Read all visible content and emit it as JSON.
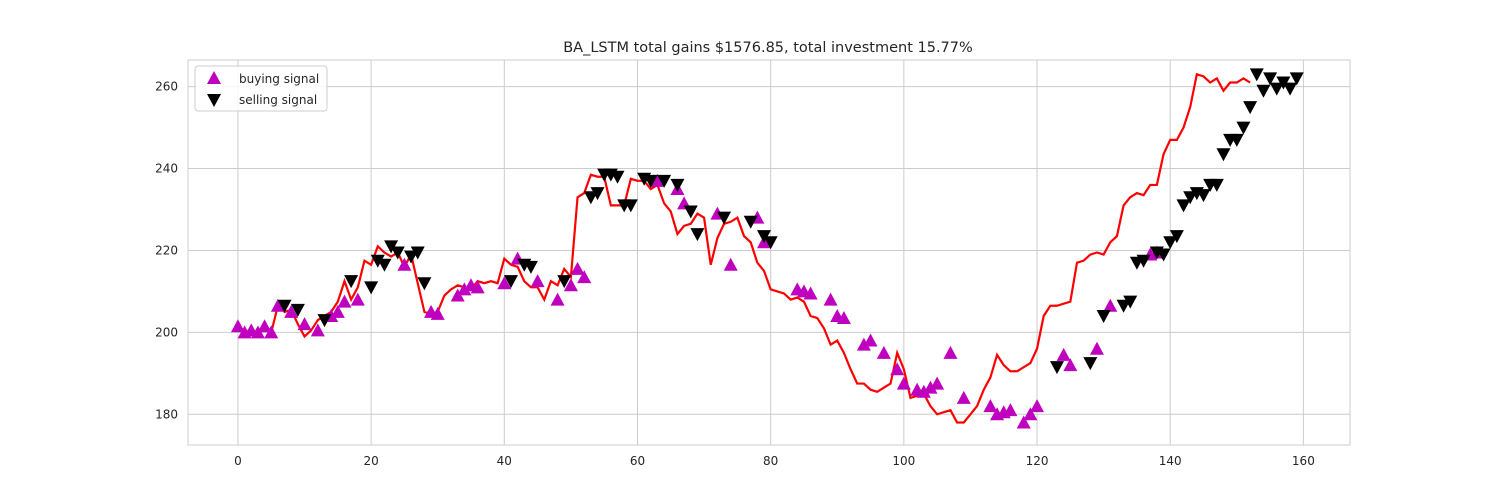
{
  "chart_data": {
    "type": "line",
    "title": "BA_LSTM total gains $1576.85, total investment 15.77%",
    "xlabel": "",
    "ylabel": "",
    "xlim": [
      -7.5,
      167
    ],
    "ylim": [
      172.5,
      266.5
    ],
    "xticks": [
      0,
      20,
      40,
      60,
      80,
      100,
      120,
      140,
      160
    ],
    "yticks": [
      180,
      200,
      220,
      240,
      260
    ],
    "grid": true,
    "legend_position": "top-left",
    "colors": {
      "line": "#ff0000",
      "buy": "#bf00bf",
      "sell": "#000000",
      "grid": "#cccccc",
      "frame": "#cccccc"
    },
    "series": [
      {
        "type": "line",
        "values": [
          201.5,
          200,
          200.5,
          200,
          201.5,
          200,
          206.5,
          205,
          205.5,
          202,
          199,
          200.5,
          203,
          204,
          205,
          207.5,
          212.5,
          208,
          211,
          217.5,
          216.5,
          221,
          219.5,
          218.5,
          219.5,
          216,
          219,
          212,
          205,
          204.5,
          205,
          209,
          210.5,
          211.5,
          211,
          210.5,
          212.5,
          212,
          212.5,
          212,
          218,
          216.5,
          216,
          212.5,
          211,
          211,
          208,
          212.5,
          211.5,
          215.5,
          213.5,
          233,
          234,
          238.5,
          238,
          238,
          231,
          231,
          231,
          237.5,
          237,
          237,
          235,
          236,
          231.5,
          229.5,
          224,
          226,
          226.5,
          229,
          228,
          216.5,
          223,
          226.5,
          227,
          228,
          223.5,
          222,
          217,
          215,
          210.5,
          210,
          209.5,
          208,
          208.5,
          207.5,
          204,
          203.5,
          201,
          197,
          198,
          195,
          191,
          187.5,
          187.5,
          186,
          185.5,
          186.5,
          187.5,
          195,
          191,
          184,
          184.5,
          185,
          182,
          180,
          180.5,
          181,
          178,
          178,
          180,
          182,
          186,
          189,
          194.5,
          192,
          190.5,
          190.5,
          191.5,
          192.5,
          196,
          204,
          206.5,
          206.5,
          207,
          207.5,
          217,
          217.5,
          219,
          219.5,
          219,
          222,
          223.5,
          231,
          233,
          234,
          233.5,
          236,
          236,
          243.5,
          247,
          247,
          250,
          255,
          263,
          262.5,
          261,
          262,
          259,
          261,
          261,
          262,
          261
        ]
      }
    ],
    "buy_signals": {
      "label": "buying signal",
      "x": [
        0,
        1,
        2,
        3,
        4,
        5,
        6,
        8,
        10,
        12,
        14,
        15,
        16,
        18,
        25,
        29,
        30,
        33,
        34,
        35,
        36,
        40,
        42,
        45,
        48,
        50,
        51,
        52,
        63,
        66,
        67,
        72,
        74,
        78,
        79,
        84,
        85,
        86,
        89,
        90,
        91,
        94,
        95,
        97,
        99,
        100,
        102,
        103,
        104,
        105,
        107,
        109,
        113,
        114,
        115,
        116,
        118,
        119,
        120,
        124,
        125,
        129,
        131,
        137,
        138
      ],
      "y": [
        201.5,
        200,
        200.5,
        200,
        201.5,
        200,
        206.5,
        205,
        202,
        200.5,
        204,
        205,
        207.5,
        208,
        216.5,
        205,
        204.5,
        209,
        210.5,
        211.5,
        211,
        212,
        218,
        212.5,
        208,
        211.5,
        215.5,
        213.5,
        237,
        235,
        231.5,
        229,
        216.5,
        228,
        222,
        210.5,
        210,
        209.5,
        208,
        204,
        203.5,
        197,
        198,
        195,
        191,
        187.5,
        186,
        185.5,
        186.5,
        187.5,
        195,
        184,
        182,
        180,
        180.5,
        181,
        178,
        180,
        182,
        194.5,
        192,
        196,
        206.5,
        219,
        219.5
      ]
    },
    "sell_signals": {
      "label": "selling signal",
      "x": [
        7,
        9,
        13,
        17,
        20,
        21,
        22,
        23,
        24,
        26,
        27,
        28,
        41,
        43,
        44,
        49,
        53,
        54,
        55,
        56,
        57,
        58,
        59,
        61,
        62,
        64,
        66,
        68,
        69,
        73,
        77,
        79,
        80,
        123,
        128,
        130,
        133,
        134,
        135,
        136,
        138,
        139,
        140,
        141,
        142,
        143,
        144,
        145,
        146,
        147,
        148,
        149,
        150,
        151,
        152,
        153,
        154,
        155,
        156,
        157,
        158,
        159
      ],
      "y": [
        206.5,
        205.5,
        203,
        212.5,
        211,
        217.5,
        216.5,
        221,
        219.5,
        218.5,
        219.5,
        212,
        212.5,
        216.5,
        216,
        212.5,
        233,
        234,
        238.5,
        238.5,
        238,
        231,
        231,
        237.5,
        237,
        237,
        236,
        229.5,
        224,
        228,
        227,
        223.5,
        222,
        191.5,
        192.5,
        204,
        206.5,
        207.5,
        217,
        217.5,
        219.5,
        219,
        222,
        223.5,
        231,
        233,
        234,
        233.5,
        236,
        236,
        243.5,
        247,
        247,
        250,
        255,
        263,
        259,
        262,
        259.5,
        261,
        259.5,
        262
      ]
    }
  },
  "legend": {
    "buy_label": "buying signal",
    "sell_label": "selling signal"
  }
}
